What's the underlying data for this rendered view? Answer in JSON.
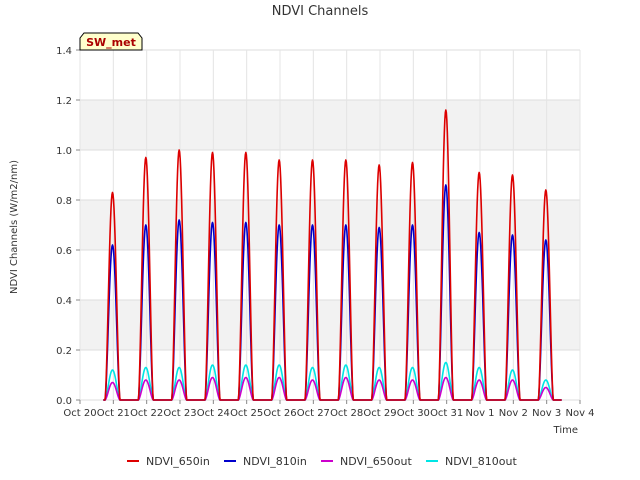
{
  "chart_data": {
    "type": "line",
    "title": "NDVI Channels",
    "xlabel": "Time",
    "ylabel": "NDVI Channels (W/m2/nm)",
    "ylim": [
      0,
      1.4
    ],
    "xlim": [
      0,
      15
    ],
    "yticks": [
      {
        "v": 0.0,
        "label": "0.0"
      },
      {
        "v": 0.2,
        "label": "0.2"
      },
      {
        "v": 0.4,
        "label": "0.4"
      },
      {
        "v": 0.6,
        "label": "0.6"
      },
      {
        "v": 0.8,
        "label": "0.8"
      },
      {
        "v": 1.0,
        "label": "1.0"
      },
      {
        "v": 1.2,
        "label": "1.2"
      },
      {
        "v": 1.4,
        "label": "1.4"
      }
    ],
    "xticks": [
      {
        "v": 0,
        "label": "Oct 20"
      },
      {
        "v": 1,
        "label": "Oct 21"
      },
      {
        "v": 2,
        "label": "Oct 22"
      },
      {
        "v": 3,
        "label": "Oct 23"
      },
      {
        "v": 4,
        "label": "Oct 24"
      },
      {
        "v": 5,
        "label": "Oct 25"
      },
      {
        "v": 6,
        "label": "Oct 26"
      },
      {
        "v": 7,
        "label": "Oct 27"
      },
      {
        "v": 8,
        "label": "Oct 28"
      },
      {
        "v": 9,
        "label": "Oct 29"
      },
      {
        "v": 10,
        "label": "Oct 30"
      },
      {
        "v": 11,
        "label": "Oct 31"
      },
      {
        "v": 12,
        "label": "Nov 1"
      },
      {
        "v": 13,
        "label": "Nov 2"
      },
      {
        "v": 14,
        "label": "Nov 3"
      },
      {
        "v": 15,
        "label": "Nov 4"
      }
    ],
    "day_start": 0.75,
    "day_end": 1.2,
    "series": [
      {
        "name": "NDVI_650in",
        "color": "#dd0000",
        "daily_peaks": [
          0.83,
          0.97,
          1.0,
          0.99,
          0.99,
          0.96,
          0.96,
          0.96,
          0.94,
          0.95,
          1.16,
          0.91,
          0.9,
          0.84
        ]
      },
      {
        "name": "NDVI_810in",
        "color": "#0000cc",
        "daily_peaks": [
          0.62,
          0.7,
          0.72,
          0.71,
          0.71,
          0.7,
          0.7,
          0.7,
          0.69,
          0.7,
          0.86,
          0.67,
          0.66,
          0.64
        ]
      },
      {
        "name": "NDVI_650out",
        "color": "#cc00cc",
        "daily_peaks": [
          0.07,
          0.08,
          0.08,
          0.09,
          0.09,
          0.09,
          0.08,
          0.09,
          0.08,
          0.08,
          0.09,
          0.08,
          0.08,
          0.05
        ]
      },
      {
        "name": "NDVI_810out",
        "color": "#00e5e5",
        "daily_peaks": [
          0.12,
          0.13,
          0.13,
          0.14,
          0.14,
          0.14,
          0.13,
          0.14,
          0.13,
          0.13,
          0.15,
          0.13,
          0.12,
          0.08
        ]
      }
    ],
    "legend_position": "bottom",
    "grid": true
  },
  "badge": {
    "label": "SW_met"
  }
}
